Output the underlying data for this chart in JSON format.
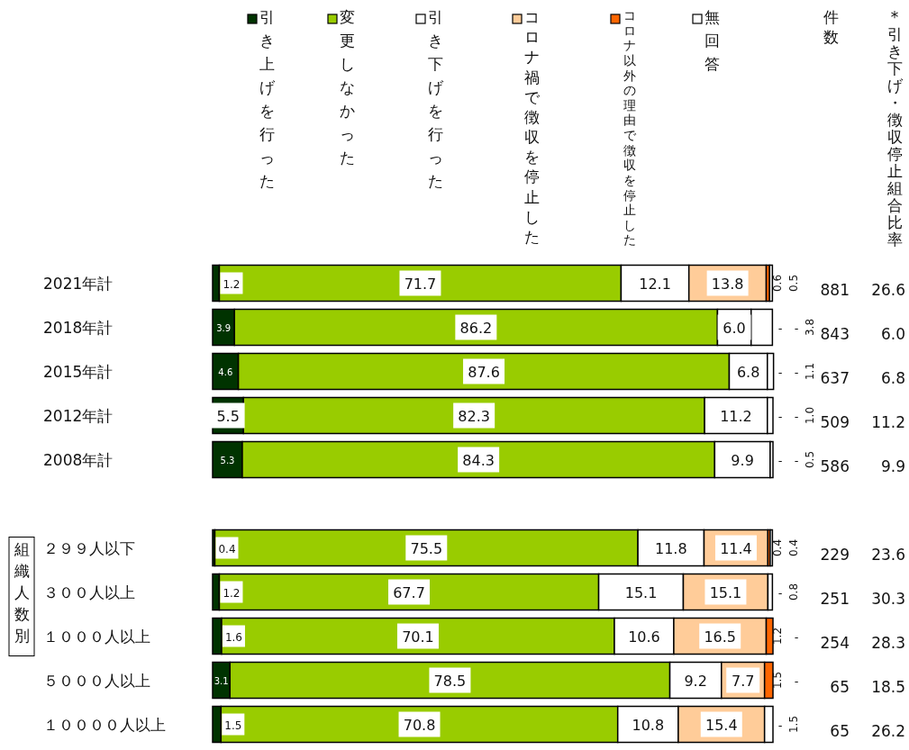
{
  "chart_data": {
    "type": "bar",
    "orientation": "horizontal",
    "stacked": true,
    "legend": "top",
    "categories": [
      "2021年計",
      "2018年計",
      "2015年計",
      "2012年計",
      "2008年計",
      null,
      "２９９人以下",
      "３００人以上",
      "１０００人以上",
      "５０００人以上",
      "１００００人以上"
    ],
    "xlim": [
      0,
      100
    ],
    "series": [
      {
        "name": "引き上げを行った",
        "color": "#003300",
        "values": [
          1.2,
          3.9,
          4.6,
          5.5,
          5.3,
          null,
          0.4,
          1.2,
          1.6,
          3.1,
          1.5
        ],
        "value_labels": [
          "1.2",
          "3.9",
          "4.6",
          "5.5",
          "5.3",
          null,
          "0.4",
          "1.2",
          "1.6",
          "3.1",
          "1.5"
        ]
      },
      {
        "name": "変更しなかった",
        "color": "#99cc00",
        "values": [
          71.7,
          86.2,
          87.6,
          82.3,
          84.3,
          null,
          75.5,
          67.7,
          70.1,
          78.5,
          70.8
        ],
        "value_labels": [
          "71.7",
          "86.2",
          "87.6",
          "82.3",
          "84.3",
          null,
          "75.5",
          "67.7",
          "70.1",
          "78.5",
          "70.8"
        ]
      },
      {
        "name": "引き下げを行った",
        "color": "#ffffff",
        "values": [
          12.1,
          6.0,
          6.8,
          11.2,
          9.9,
          null,
          11.8,
          15.1,
          10.6,
          9.2,
          10.8
        ],
        "value_labels": [
          "12.1",
          "6.0",
          "6.8",
          "11.2",
          "9.9",
          null,
          "11.8",
          "15.1",
          "10.6",
          "9.2",
          "10.8"
        ]
      },
      {
        "name": "コロナ禍で徴収を停止した",
        "color": "#ffcc99",
        "values": [
          13.8,
          null,
          null,
          null,
          null,
          null,
          11.4,
          15.1,
          16.5,
          7.7,
          15.4
        ],
        "value_labels": [
          "13.8",
          "-",
          "-",
          "-",
          "-",
          null,
          "11.4",
          "15.1",
          "16.5",
          "7.7",
          "15.4"
        ]
      },
      {
        "name": "コロナ以外の理由で徴収を停止した",
        "color": "#ff6600",
        "values": [
          0.6,
          null,
          null,
          null,
          null,
          null,
          0.4,
          null,
          1.2,
          1.5,
          null
        ],
        "value_labels": [
          "0.6",
          "-",
          "-",
          "-",
          "-",
          null,
          "0.4",
          "-",
          "1.2",
          "1.5",
          "-"
        ]
      },
      {
        "name": "無回答",
        "color": "#ffffff",
        "values": [
          0.5,
          3.8,
          1.1,
          1.0,
          0.5,
          null,
          0.4,
          0.8,
          null,
          null,
          1.5
        ],
        "value_labels": [
          "0.5",
          "3.8",
          "1.1",
          "1.0",
          "0.5",
          null,
          "0.4",
          "0.8",
          "-",
          "-",
          "1.5"
        ]
      }
    ],
    "annotations": [
      "件数",
      "*引き下げ・徴収停止組合比率",
      "組織人数別",
      "881",
      "843",
      "637",
      "509",
      "586",
      "229",
      "251",
      "254",
      "65",
      "65",
      "26.6",
      "6.0",
      "6.8",
      "11.2",
      "9.9",
      "23.6",
      "30.3",
      "28.3",
      "18.5",
      "26.2"
    ]
  }
}
